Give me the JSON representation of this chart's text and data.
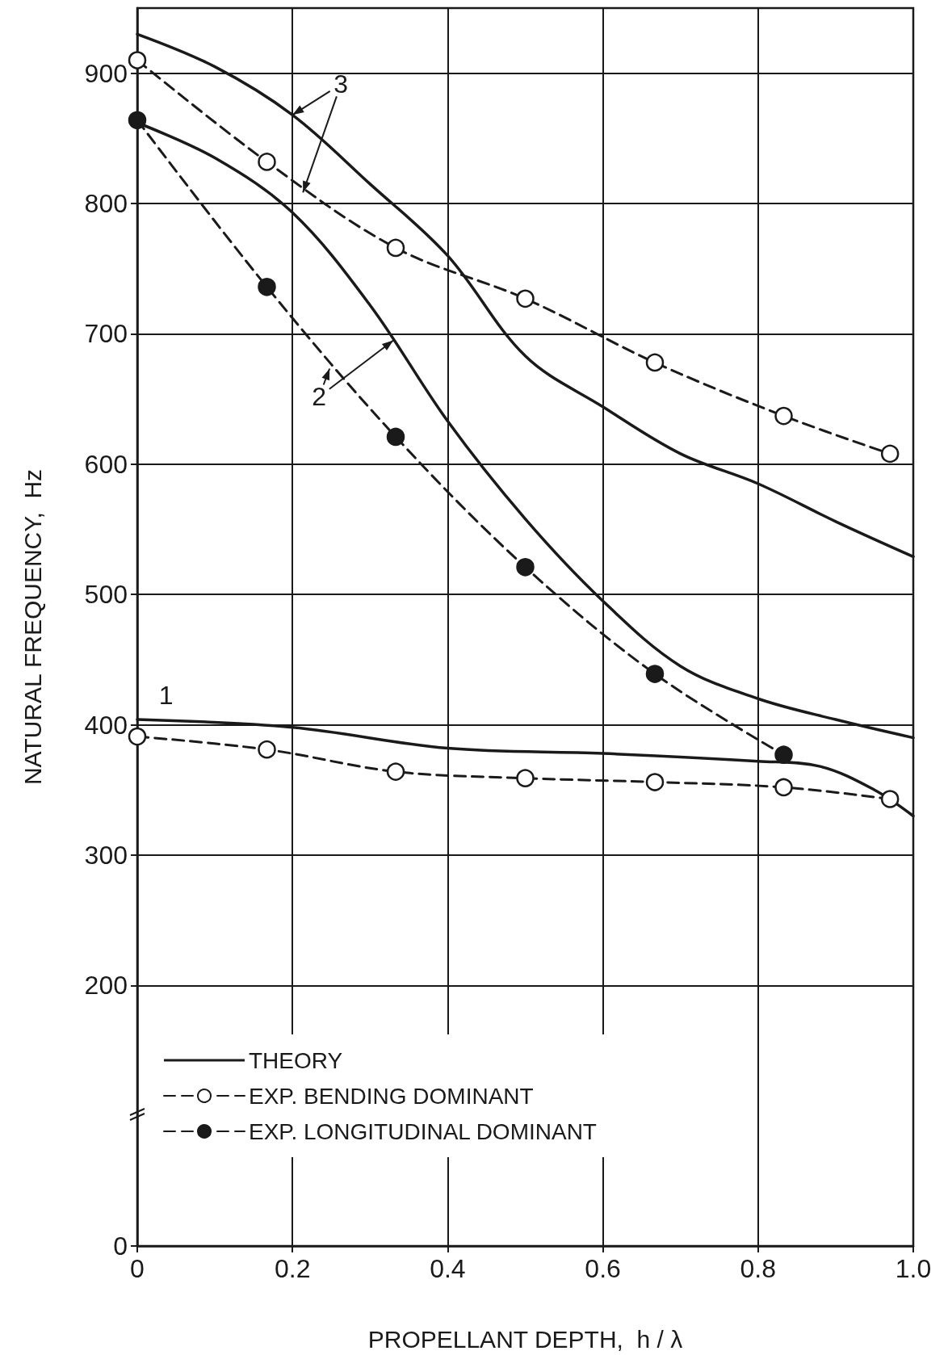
{
  "chart_data": {
    "type": "line",
    "xlabel": "PROPELLANT DEPTH,  h / λ",
    "ylabel": "NATURAL FREQUENCY,  Hz",
    "xlim": [
      0,
      1
    ],
    "xticks": [
      0,
      0.2,
      0.4,
      0.6,
      0.8,
      {
        "value": 1,
        "label": "1.0"
      }
    ],
    "ylim": [
      0,
      950
    ],
    "yticks": [
      0,
      200,
      300,
      400,
      500,
      600,
      700,
      800,
      900
    ],
    "grid": true,
    "legend": "bottom left",
    "series": [
      {
        "name": "THEORY",
        "color": "#1a1a1a",
        "line_style": "solid",
        "marker": "none",
        "x": [
          0,
          0.1,
          0.2,
          0.3,
          0.4,
          0.5,
          0.6,
          0.7,
          0.8,
          0.9,
          1
        ],
        "values": [
          930,
          905,
          868,
          815,
          760,
          683,
          644,
          608,
          585,
          556,
          529
        ]
      },
      {
        "color": "#1a1a1a",
        "line_style": "solid",
        "marker": "none",
        "x": [
          0,
          0.1,
          0.2,
          0.3,
          0.4,
          0.5,
          0.6,
          0.7,
          0.8,
          0.9,
          1
        ],
        "values": [
          862,
          835,
          793,
          722,
          633,
          558,
          495,
          445,
          420,
          404,
          390
        ]
      },
      {
        "color": "#1a1a1a",
        "line_style": "solid",
        "marker": "none",
        "x": [
          0,
          0.2,
          0.4,
          0.6,
          0.8,
          0.88,
          0.95,
          1
        ],
        "values": [
          404,
          398,
          382,
          378,
          372,
          368,
          350,
          330
        ]
      },
      {
        "name": "EXP. BENDING DOMINANT",
        "color": "#1a1a1a",
        "line_style": "dashed",
        "marker": "circle",
        "x": [
          0,
          0.167,
          0.333,
          0.5,
          0.667,
          0.833,
          0.97
        ],
        "values": [
          910,
          832,
          766,
          727,
          678,
          637,
          608
        ]
      },
      {
        "color": "#1a1a1a",
        "line_style": "dashed",
        "marker": "circle",
        "x": [
          0,
          0.167,
          0.333,
          0.5,
          0.667,
          0.833,
          0.97
        ],
        "values": [
          391,
          381,
          364,
          359,
          356,
          352,
          343
        ]
      },
      {
        "name": "EXP. LONGITUDINAL DOMINANT",
        "color": "#1a1a1a",
        "line_style": "dashed",
        "marker": "circle",
        "x": [
          0,
          0.167,
          0.333,
          0.5,
          0.667,
          0.833
        ],
        "values": [
          864,
          736,
          621,
          521,
          439,
          377
        ]
      }
    ],
    "annotations": [
      {
        "text": "3",
        "x": 0.2,
        "y": 868
      },
      {
        "text": "2",
        "x": 0.33,
        "y": 695
      },
      "1"
    ]
  }
}
